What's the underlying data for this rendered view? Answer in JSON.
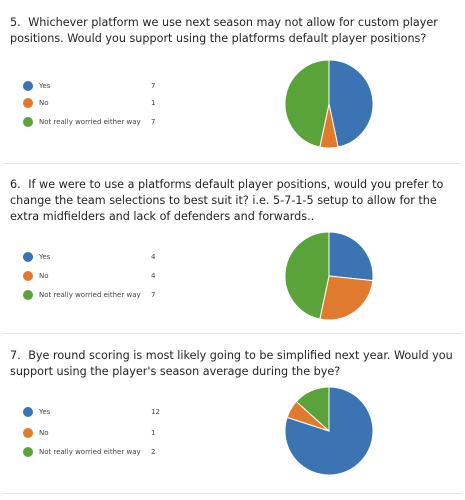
{
  "colors": {
    "yes": "#3b73b3",
    "no": "#e07a2f",
    "neutral": "#5aa33b"
  },
  "questions": [
    {
      "number": "5.",
      "text": "Whichever platform we use next season may not allow for custom player positions. Would you support using the platforms default player positions?",
      "options": [
        {
          "label": "Yes",
          "count": "7",
          "color": "yes"
        },
        {
          "label": "No",
          "count": "1",
          "color": "no"
        },
        {
          "label": "Not really worried either way",
          "count": "7",
          "color": "neutral"
        }
      ]
    },
    {
      "number": "6.",
      "text": "If we were to use a platforms default player positions, would you prefer to change the team selections to best suit it? i.e. 5-7-1-5 setup to allow for the extra midfielders and lack of defenders and forwards..",
      "options": [
        {
          "label": "Yes",
          "count": "4",
          "color": "yes"
        },
        {
          "label": "No",
          "count": "4",
          "color": "no"
        },
        {
          "label": "Not really worried either way",
          "count": "7",
          "color": "neutral"
        }
      ]
    },
    {
      "number": "7.",
      "text": "Bye round scoring is most likely going to be simplified next year. Would you support using the player's season average during the bye?",
      "options": [
        {
          "label": "Yes",
          "count": "12",
          "color": "yes"
        },
        {
          "label": "No",
          "count": "1",
          "color": "no"
        },
        {
          "label": "Not really worried either way",
          "count": "2",
          "color": "neutral"
        }
      ]
    }
  ],
  "chart_data": [
    {
      "type": "pie",
      "categories": [
        "Yes",
        "No",
        "Not really worried either way"
      ],
      "values": [
        7,
        1,
        7
      ],
      "title": ""
    },
    {
      "type": "pie",
      "categories": [
        "Yes",
        "No",
        "Not really worried either way"
      ],
      "values": [
        4,
        4,
        7
      ],
      "title": ""
    },
    {
      "type": "pie",
      "categories": [
        "Yes",
        "No",
        "Not really worried either way"
      ],
      "values": [
        12,
        1,
        2
      ],
      "title": ""
    }
  ]
}
